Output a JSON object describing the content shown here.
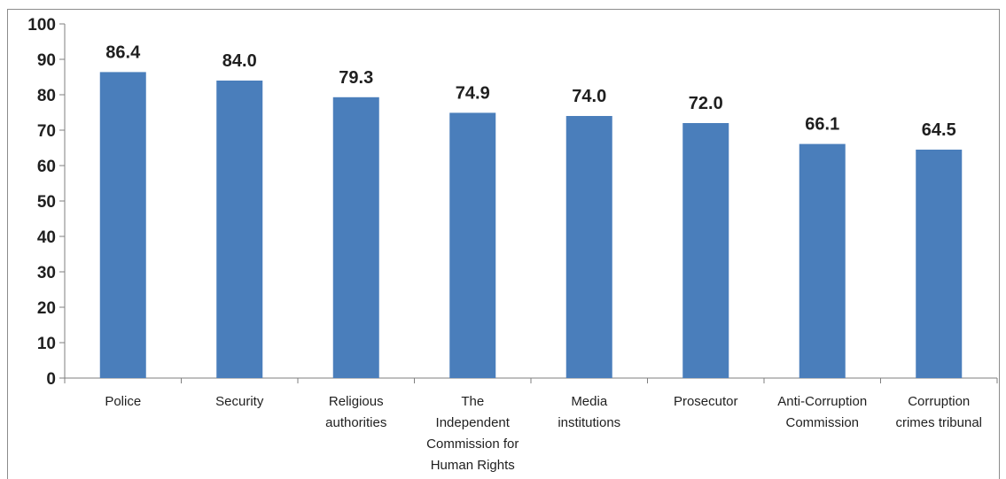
{
  "chart_data": {
    "type": "bar",
    "categories": [
      [
        "Police"
      ],
      [
        "Security"
      ],
      [
        "Religious",
        "authorities"
      ],
      [
        "The",
        "Independent",
        "Commission for",
        "Human Rights"
      ],
      [
        "Media",
        "institutions"
      ],
      [
        "Prosecutor"
      ],
      [
        "Anti-Corruption",
        "Commission"
      ],
      [
        "Corruption",
        "crimes tribunal"
      ]
    ],
    "values": [
      86.4,
      84.0,
      79.3,
      74.9,
      74.0,
      72.0,
      66.1,
      64.5
    ],
    "value_labels": [
      "86.4",
      "84.0",
      "79.3",
      "74.9",
      "74.0",
      "72.0",
      "66.1",
      "64.5"
    ],
    "ylim": [
      0,
      100
    ],
    "yticks": [
      "0",
      "10",
      "20",
      "30",
      "40",
      "50",
      "60",
      "70",
      "80",
      "90",
      "100"
    ],
    "grid": false,
    "bar_color": "#4a7ebb",
    "title": "",
    "xlabel": "",
    "ylabel": ""
  }
}
